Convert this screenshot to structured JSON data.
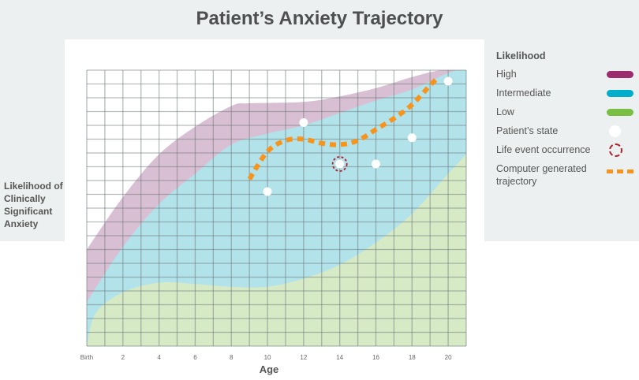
{
  "title": "Patient’s Anxiety Trajectory",
  "ylabel": "Likelihood of Clinically Significant Anxiety",
  "legend": {
    "title": "Likelihood",
    "items": [
      {
        "label": "High",
        "color": "#9b2d6e"
      },
      {
        "label": "Intermediate",
        "color": "#00aecb"
      },
      {
        "label": "Low",
        "color": "#78bf44"
      },
      {
        "label": "Patient’s state"
      },
      {
        "label": "Life event occurrence",
        "color": "#b0202b"
      },
      {
        "label": "Computer generated trajectory",
        "color": "#f7941d"
      }
    ]
  },
  "chart_data": {
    "type": "area",
    "xlabel": "Age",
    "x_ticks": [
      "Birth",
      "2",
      "4",
      "6",
      "8",
      "10",
      "12",
      "14",
      "16",
      "18",
      "20"
    ],
    "xlim": [
      0,
      21
    ],
    "ylim": [
      0,
      20
    ],
    "grid": true,
    "legend_position": "right",
    "bands": [
      {
        "name": "High",
        "fill": "#d9bfd3",
        "upper": [
          [
            0,
            7
          ],
          [
            2,
            10.8
          ],
          [
            4,
            13.9
          ],
          [
            6,
            15.9
          ],
          [
            8,
            17.4
          ],
          [
            9,
            17.6
          ],
          [
            12,
            17.7
          ],
          [
            14,
            18.1
          ],
          [
            16,
            18.7
          ],
          [
            18,
            19.5
          ],
          [
            19.6,
            20
          ],
          [
            21,
            20
          ]
        ]
      },
      {
        "name": "Intermediate",
        "fill": "#b2e2ea",
        "upper": [
          [
            0,
            3.2
          ],
          [
            2,
            7.2
          ],
          [
            4,
            10.3
          ],
          [
            6,
            12.5
          ],
          [
            8,
            14.6
          ],
          [
            10,
            15.4
          ],
          [
            12,
            16
          ],
          [
            14,
            16.9
          ],
          [
            16,
            17.8
          ],
          [
            18,
            18.6
          ],
          [
            20,
            19.8
          ],
          [
            21,
            20.1
          ]
        ]
      },
      {
        "name": "Low",
        "fill": "#d6eac6",
        "upper": [
          [
            0,
            0
          ],
          [
            0.5,
            2.4
          ],
          [
            2,
            3.9
          ],
          [
            4,
            4.6
          ],
          [
            6,
            4.5
          ],
          [
            8,
            4.3
          ],
          [
            10,
            4.3
          ],
          [
            12,
            4.9
          ],
          [
            14,
            5.9
          ],
          [
            16,
            7.5
          ],
          [
            18,
            9.6
          ],
          [
            20,
            12.5
          ],
          [
            21,
            13.9
          ]
        ]
      }
    ],
    "patient_states": [
      [
        10,
        11.2
      ],
      [
        12,
        16.2
      ],
      [
        14,
        13.2
      ],
      [
        16,
        13.2
      ],
      [
        18,
        15.1
      ],
      [
        20,
        19.2
      ]
    ],
    "life_events": [
      [
        14,
        13.2
      ]
    ],
    "trajectory": [
      [
        9,
        12.1
      ],
      [
        10,
        14.1
      ],
      [
        11,
        14.9
      ],
      [
        12,
        15
      ],
      [
        13,
        14.7
      ],
      [
        14,
        14.6
      ],
      [
        15,
        14.9
      ],
      [
        16,
        15.7
      ],
      [
        17,
        16.5
      ],
      [
        18,
        17.5
      ],
      [
        19,
        18.9
      ],
      [
        19.4,
        19.4
      ]
    ]
  }
}
